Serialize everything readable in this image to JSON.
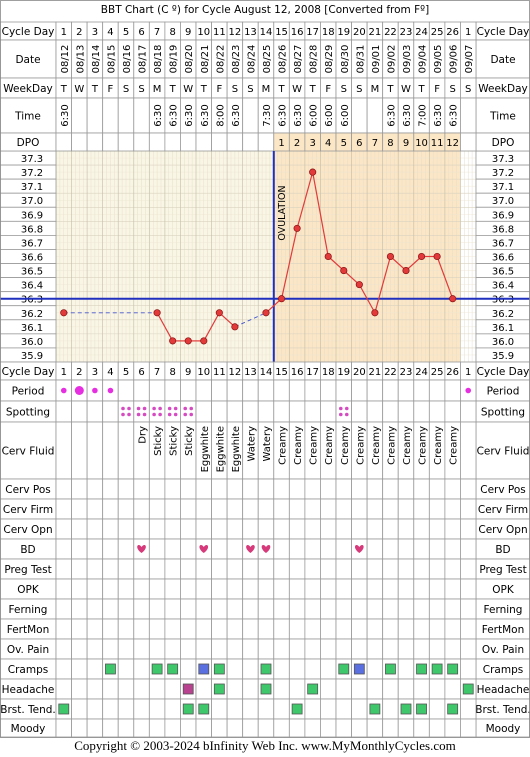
{
  "title": "BBT Chart (C º) for Cycle August 12, 2008  [Converted from Fº]",
  "copyright": "Copyright © 2003-2024 bInfinity Web Inc.     www.MyMonthlyCycles.com",
  "row_labels": {
    "cycle_day": "Cycle Day",
    "date": "Date",
    "weekday": "WeekDay",
    "time": "Time",
    "dpo": "DPO",
    "period": "Period",
    "spotting": "Spotting",
    "cerv_fluid": "Cerv Fluid",
    "cerv_pos": "Cerv Pos",
    "cerv_firm": "Cerv Firm",
    "cerv_opn": "Cerv Opn",
    "bd": "BD",
    "preg_test": "Preg Test",
    "opk": "OPK",
    "ferning": "Ferning",
    "fertmon": "FertMon",
    "ov_pain": "Ov. Pain",
    "cramps": "Cramps",
    "headache": "Headache",
    "brst_tend": "Brst. Tend.",
    "moody": "Moody"
  },
  "cycle_days": [
    "1",
    "2",
    "3",
    "4",
    "5",
    "6",
    "7",
    "8",
    "9",
    "10",
    "11",
    "12",
    "13",
    "14",
    "15",
    "16",
    "17",
    "18",
    "19",
    "20",
    "21",
    "22",
    "23",
    "24",
    "25",
    "26",
    "1"
  ],
  "dates": [
    "08/12",
    "08/13",
    "08/14",
    "08/15",
    "08/16",
    "08/17",
    "08/18",
    "08/19",
    "08/20",
    "08/21",
    "08/22",
    "08/23",
    "08/24",
    "08/25",
    "08/26",
    "08/27",
    "08/28",
    "08/29",
    "08/30",
    "08/31",
    "09/01",
    "09/02",
    "09/03",
    "09/04",
    "09/05",
    "09/06",
    "09/07"
  ],
  "weekdays": [
    "T",
    "W",
    "T",
    "F",
    "S",
    "S",
    "M",
    "T",
    "W",
    "T",
    "F",
    "S",
    "S",
    "M",
    "T",
    "W",
    "T",
    "F",
    "S",
    "S",
    "M",
    "T",
    "W",
    "T",
    "F",
    "S",
    "S"
  ],
  "times": [
    "6:30",
    "",
    "",
    "",
    "",
    "",
    "6:30",
    "6:30",
    "6:30",
    "6:30",
    "8:00",
    "6:30",
    "",
    "7:30",
    "6:30",
    "6:30",
    "6:00",
    "6:00",
    "6:00",
    "",
    "",
    "6:30",
    "6:30",
    "7:00",
    "6:30",
    "6:30",
    ""
  ],
  "dpo": [
    "",
    "",
    "",
    "",
    "",
    "",
    "",
    "",
    "",
    "",
    "",
    "",
    "",
    "",
    "1",
    "2",
    "3",
    "4",
    "5",
    "6",
    "7",
    "8",
    "9",
    "10",
    "11",
    "12",
    ""
  ],
  "cerv_fluid": [
    "",
    "",
    "",
    "",
    "",
    "Dry",
    "Sticky",
    "Sticky",
    "Sticky",
    "Eggwhite",
    "Eggwhite",
    "Eggwhite",
    "Watery",
    "Watery",
    "Creamy",
    "Creamy",
    "Creamy",
    "Creamy",
    "Creamy",
    "Creamy",
    "Creamy",
    "Creamy",
    "Creamy",
    "Creamy",
    "Creamy",
    "Creamy",
    ""
  ],
  "period": [
    "light",
    "heavy",
    "light",
    "light",
    "",
    "",
    "",
    "",
    "",
    "",
    "",
    "",
    "",
    "",
    "",
    "",
    "",
    "",
    "",
    "",
    "",
    "",
    "",
    "",
    "",
    "",
    "light"
  ],
  "spotting": [
    false,
    false,
    false,
    false,
    true,
    true,
    true,
    true,
    true,
    false,
    false,
    false,
    false,
    false,
    false,
    false,
    false,
    false,
    true,
    false,
    false,
    false,
    false,
    false,
    false,
    false,
    false
  ],
  "bd": [
    false,
    false,
    false,
    false,
    false,
    true,
    false,
    false,
    false,
    true,
    false,
    false,
    true,
    true,
    false,
    false,
    false,
    false,
    false,
    true,
    false,
    false,
    false,
    false,
    false,
    false,
    false
  ],
  "cramps": [
    "",
    "",
    "",
    "green",
    "",
    "",
    "green",
    "green",
    "",
    "blue",
    "green",
    "",
    "",
    "green",
    "",
    "",
    "",
    "",
    "green",
    "blue",
    "",
    "green",
    "",
    "green",
    "green",
    "green",
    ""
  ],
  "headache": [
    "",
    "",
    "",
    "",
    "",
    "",
    "",
    "",
    "purple",
    "",
    "green",
    "",
    "",
    "green",
    "",
    "",
    "green",
    "",
    "",
    "",
    "",
    "",
    "",
    "",
    "",
    "",
    "green"
  ],
  "brst_tend": [
    "green",
    "",
    "",
    "",
    "",
    "",
    "",
    "",
    "green",
    "green",
    "",
    "",
    "",
    "",
    "",
    "green",
    "",
    "",
    "",
    "",
    "green",
    "",
    "green",
    "green",
    "",
    "green",
    ""
  ],
  "chart_data": {
    "type": "line",
    "ylabel": "",
    "ylim": [
      35.9,
      37.3
    ],
    "y_ticks": [
      "37.3",
      "37.2",
      "37.1",
      "37.0",
      "36.9",
      "36.8",
      "36.7",
      "36.6",
      "36.5",
      "36.4",
      "36.3",
      "36.2",
      "36.1",
      "36.0",
      "35.9"
    ],
    "coverline": 36.25,
    "ovulation_after_day": 14,
    "ovulation_label": "OVULATION",
    "series": [
      {
        "values": [
          36.2,
          null,
          null,
          null,
          null,
          null,
          36.2,
          36.0,
          36.0,
          36.0,
          36.2,
          36.1,
          null,
          36.2,
          36.3,
          36.8,
          37.2,
          36.6,
          36.5,
          36.4,
          36.2,
          36.6,
          36.5,
          36.6,
          36.6,
          36.3,
          null
        ]
      }
    ]
  }
}
